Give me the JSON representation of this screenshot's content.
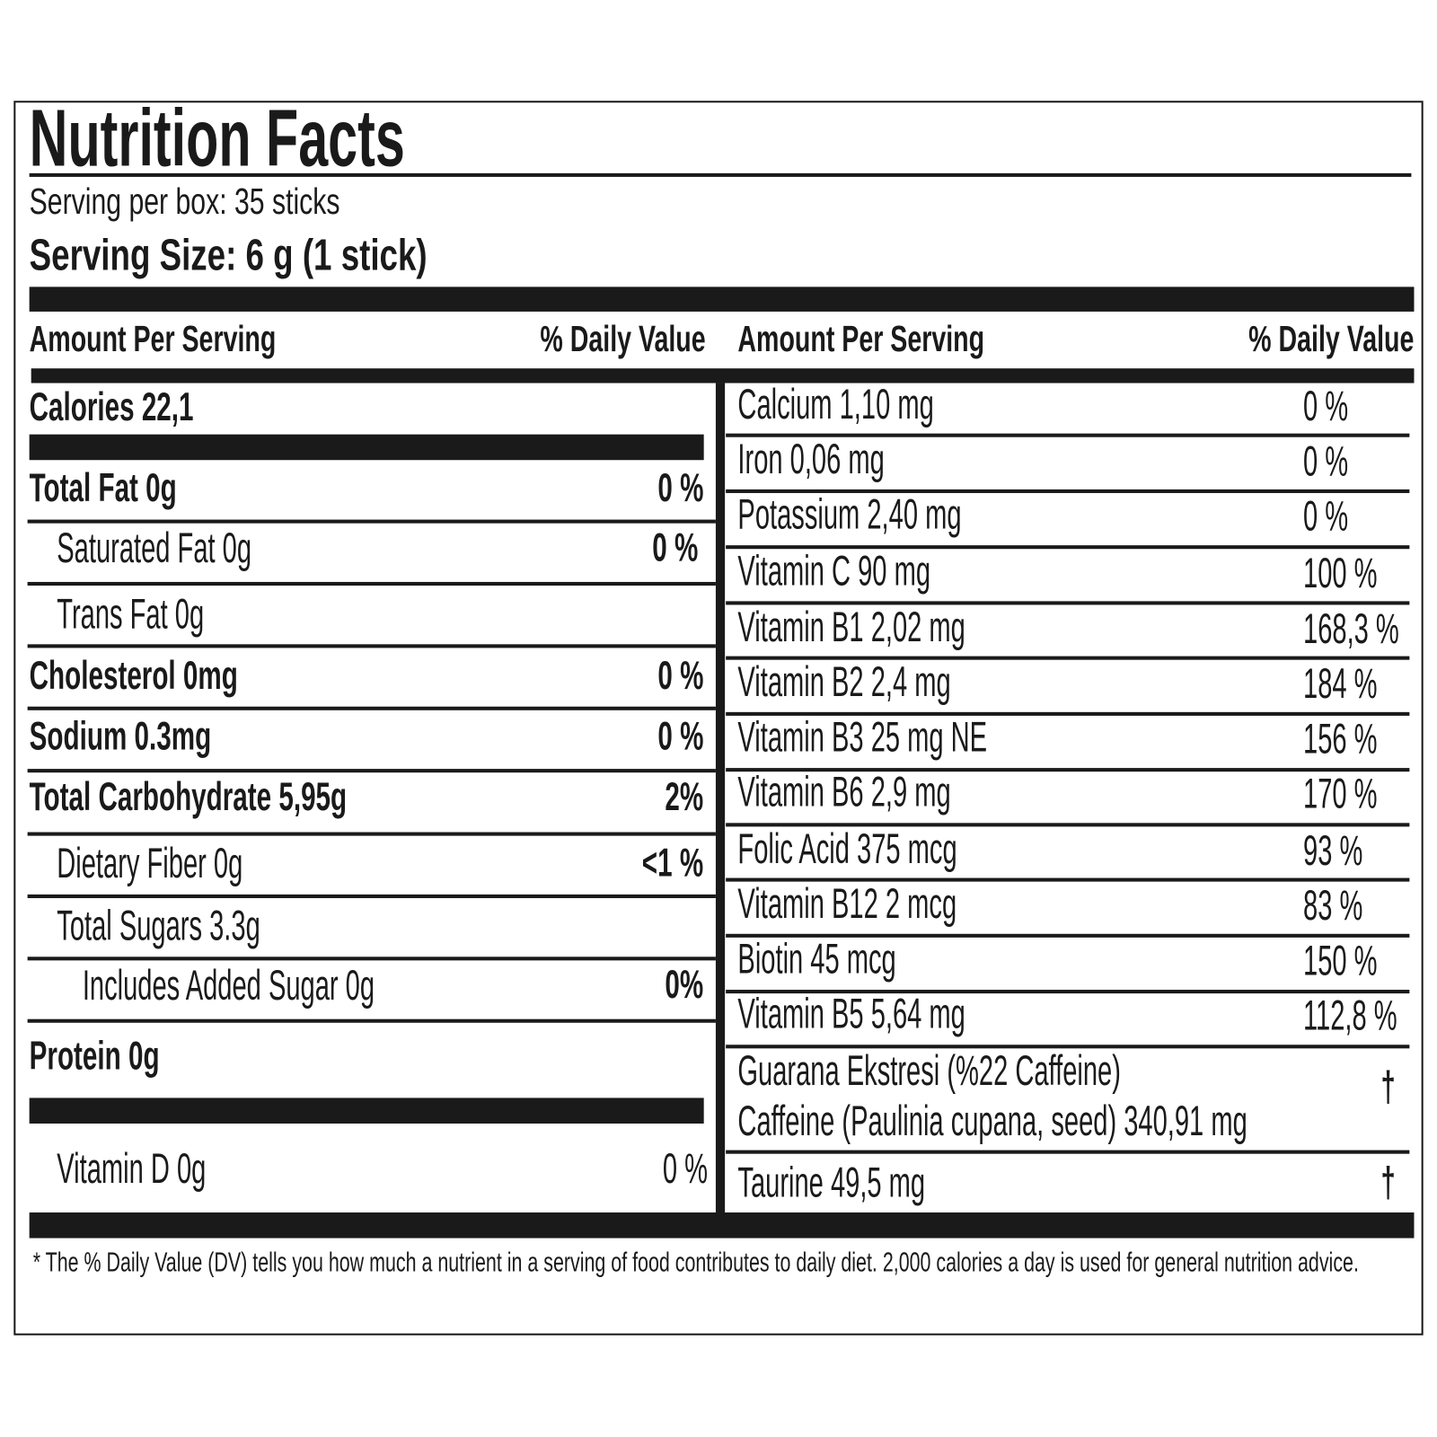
{
  "title": "Nutrition Facts",
  "serving_per_box": "Serving per box: 35 sticks",
  "serving_size": "Serving Size: 6 g (1 stick)",
  "left": {
    "header": {
      "amount": "Amount Per Serving",
      "dv": "% Daily Value"
    },
    "rows": [
      {
        "name": "Calories  22,1"
      },
      {
        "name": "Total Fat  0g",
        "dv": "0 %"
      },
      {
        "name": "Saturated Fat  0g",
        "dv": "0 %"
      },
      {
        "name": "Trans Fat  0g"
      },
      {
        "name": "Cholesterol  0mg",
        "dv": "0 %"
      },
      {
        "name": "Sodium  0.3mg",
        "dv": "0 %"
      },
      {
        "name": "Total Carbohydrate  5,95g",
        "dv": "2%"
      },
      {
        "name": "Dietary Fiber 0g",
        "dv": "<1 %"
      },
      {
        "name": "Total Sugars 3.3g"
      },
      {
        "name": "Includes Added Sugar 0g",
        "dv": "0%"
      },
      {
        "name": "Protein  0g"
      },
      {
        "name": "Vitamin D 0g",
        "dv": "0 %"
      }
    ]
  },
  "right": {
    "header": {
      "amount": "Amount Per Serving",
      "dv": "% Daily Value"
    },
    "rows": [
      {
        "name": "Calcium 1,10 mg",
        "dv": "0 %"
      },
      {
        "name": "Iron 0,06 mg",
        "dv": "0 %"
      },
      {
        "name": "Potassium 2,40 mg",
        "dv": "0 %"
      },
      {
        "name": "Vitamin C 90 mg",
        "dv": "100 %"
      },
      {
        "name": "Vitamin B1 2,02 mg",
        "dv": "168,3 %"
      },
      {
        "name": "Vitamin B2 2,4 mg",
        "dv": "184 %"
      },
      {
        "name": "Vitamin B3 25 mg NE",
        "dv": "156 %"
      },
      {
        "name": "Vitamin B6 2,9 mg",
        "dv": "170 %"
      },
      {
        "name": "Folic Acid 375 mcg",
        "dv": "93 %"
      },
      {
        "name": "Vitamin B12 2 mcg",
        "dv": "83 %"
      },
      {
        "name": "Biotin 45 mcg",
        "dv": "150 %"
      },
      {
        "name": "Vitamin B5 5,64 mg",
        "dv": "112,8 %"
      },
      {
        "name": "Guarana Ekstresi (%22 Caffeine)",
        "name2": "Caffeine (Paulinia cupana, seed) 340,91 mg",
        "dv": "†"
      },
      {
        "name": "Taurine 49,5 mg",
        "dv": "†"
      }
    ]
  },
  "footnote": "* The % Daily Value (DV) tells you how much a nutrient in a serving of food contributes to daily diet. 2,000 calories a day is used for general nutrition advice."
}
